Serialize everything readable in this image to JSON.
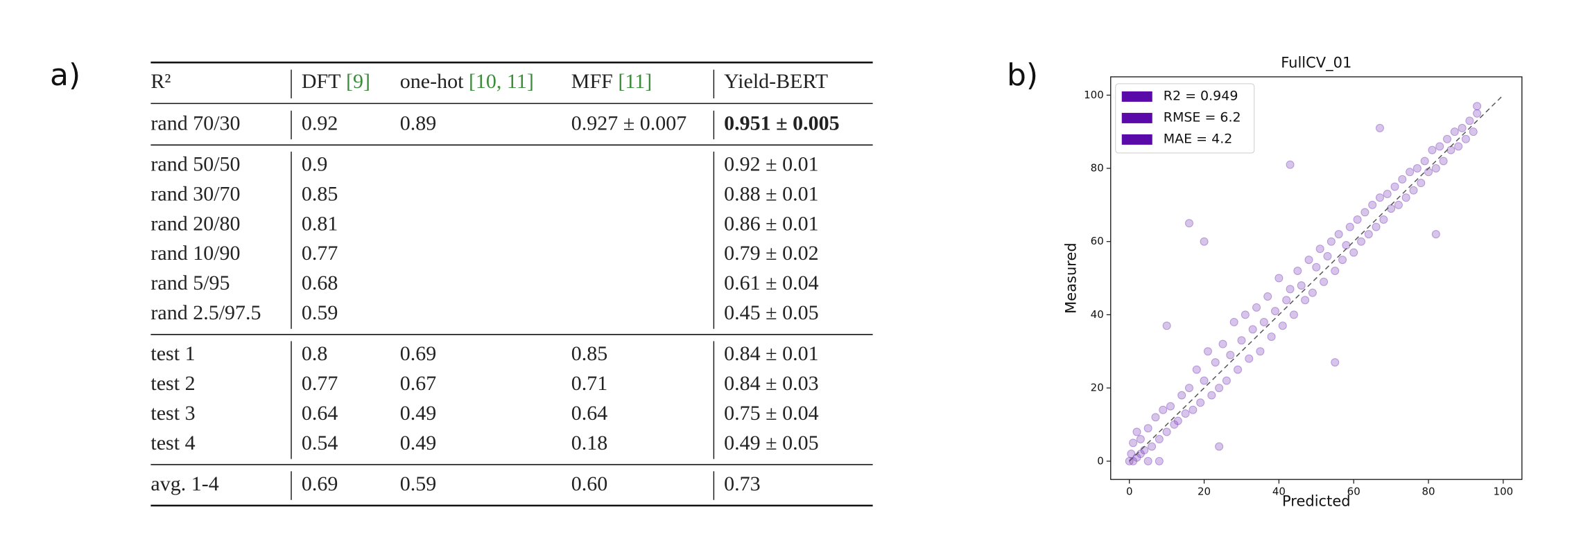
{
  "panel_labels": [
    "a)",
    "b)"
  ],
  "table": {
    "header": [
      {
        "text": "R²"
      },
      {
        "text": "DFT",
        "cite": "[9]"
      },
      {
        "text": "one-hot",
        "cite": "[10, 11]"
      },
      {
        "text": "MFF",
        "cite": "[11]"
      },
      {
        "text": "Yield-BERT"
      }
    ],
    "groups": [
      [
        {
          "cells": [
            "rand 70/30",
            "0.92",
            "0.89",
            "0.927 ± 0.007",
            "0.951 ± 0.005"
          ],
          "bold": [
            4
          ]
        }
      ],
      [
        {
          "cells": [
            "rand 50/50",
            "0.9",
            null,
            null,
            "0.92 ± 0.01"
          ]
        },
        {
          "cells": [
            "rand 30/70",
            "0.85",
            null,
            null,
            "0.88 ± 0.01"
          ]
        },
        {
          "cells": [
            "rand 20/80",
            "0.81",
            null,
            null,
            "0.86 ± 0.01"
          ]
        },
        {
          "cells": [
            "rand 10/90",
            "0.77",
            null,
            null,
            "0.79 ± 0.02"
          ]
        },
        {
          "cells": [
            "rand 5/95",
            "0.68",
            null,
            null,
            "0.61 ± 0.04"
          ]
        },
        {
          "cells": [
            "rand 2.5/97.5",
            "0.59",
            null,
            null,
            "0.45 ± 0.05"
          ]
        }
      ],
      [
        {
          "cells": [
            "test 1",
            "0.8",
            "0.69",
            "0.85",
            "0.84 ± 0.01"
          ]
        },
        {
          "cells": [
            "test 2",
            "0.77",
            "0.67",
            "0.71",
            "0.84 ± 0.03"
          ]
        },
        {
          "cells": [
            "test 3",
            "0.64",
            "0.49",
            "0.64",
            "0.75 ± 0.04"
          ]
        },
        {
          "cells": [
            "test 4",
            "0.54",
            "0.49",
            "0.18",
            "0.49 ± 0.05"
          ]
        }
      ],
      [
        {
          "cells": [
            "avg. 1-4",
            "0.69",
            "0.59",
            "0.60",
            "0.73"
          ]
        }
      ]
    ]
  },
  "chart_data": {
    "type": "scatter",
    "title": "FullCV_01",
    "x_label": "Predicted",
    "y_label": "Measured",
    "color": "#7a3db8",
    "legend": [
      "R2 = 0.949",
      "RMSE = 6.2",
      "MAE = 4.2"
    ],
    "legend_color": "#5a0aa8",
    "legend_corner": "upper-left",
    "reference_line": {
      "x": [
        0,
        100
      ],
      "y": [
        0,
        100
      ]
    },
    "xlim": [
      -5,
      105
    ],
    "ylim": [
      -5,
      105
    ],
    "xticks": [
      0,
      20,
      40,
      60,
      80,
      100
    ],
    "yticks": [
      0,
      20,
      40,
      60,
      80,
      100
    ],
    "x": [
      0,
      0.5,
      1,
      1,
      2,
      2,
      3,
      3,
      4,
      5,
      5,
      6,
      7,
      8,
      9,
      10,
      11,
      12,
      13,
      14,
      15,
      16,
      17,
      18,
      19,
      20,
      21,
      22,
      23,
      24,
      25,
      26,
      27,
      28,
      29,
      30,
      31,
      32,
      33,
      34,
      35,
      36,
      37,
      38,
      39,
      40,
      41,
      42,
      43,
      44,
      45,
      46,
      47,
      48,
      49,
      50,
      51,
      52,
      53,
      54,
      55,
      56,
      57,
      58,
      59,
      60,
      61,
      62,
      63,
      64,
      65,
      66,
      67,
      68,
      69,
      70,
      71,
      72,
      73,
      74,
      75,
      76,
      77,
      78,
      79,
      80,
      81,
      82,
      83,
      84,
      85,
      86,
      87,
      88,
      89,
      90,
      91,
      92,
      93,
      93,
      16,
      43,
      10,
      55,
      8,
      20,
      67,
      24,
      82
    ],
    "y": [
      0,
      2,
      0,
      5,
      1,
      8,
      2,
      6,
      3,
      9,
      0,
      4,
      12,
      6,
      14,
      8,
      15,
      10,
      11,
      18,
      13,
      20,
      14,
      25,
      16,
      22,
      30,
      18,
      27,
      20,
      32,
      22,
      29,
      38,
      25,
      33,
      40,
      28,
      36,
      42,
      30,
      38,
      45,
      34,
      41,
      50,
      37,
      44,
      47,
      40,
      52,
      48,
      44,
      55,
      46,
      53,
      58,
      49,
      56,
      60,
      52,
      62,
      55,
      59,
      64,
      57,
      66,
      60,
      68,
      62,
      70,
      64,
      72,
      66,
      73,
      69,
      75,
      70,
      77,
      72,
      79,
      74,
      80,
      76,
      82,
      79,
      85,
      80,
      86,
      82,
      88,
      85,
      90,
      86,
      91,
      88,
      93,
      90,
      97,
      95,
      65,
      81,
      37,
      27,
      0,
      60,
      91,
      4,
      62
    ]
  }
}
